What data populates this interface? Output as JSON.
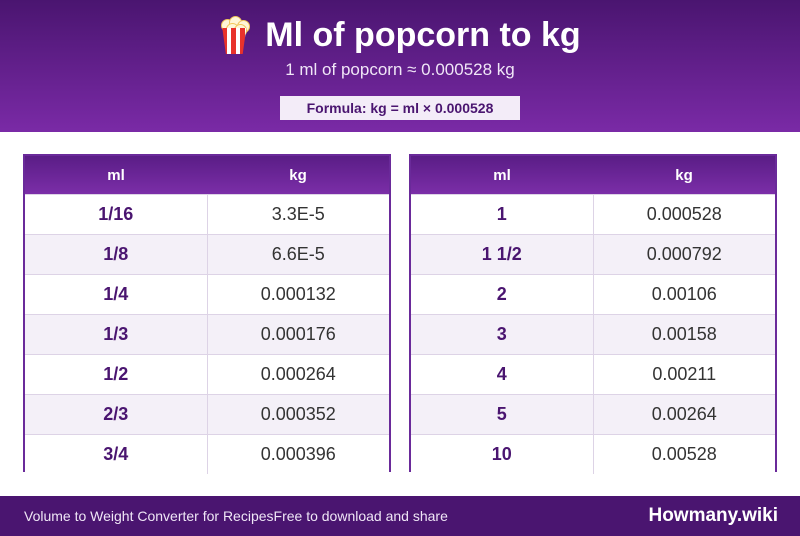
{
  "header": {
    "title": "Ml of popcorn to kg",
    "icon": "popcorn-icon",
    "subtitle": "1 ml of popcorn ≈ 0.000528 kg",
    "formula": "Formula: kg = ml × 0.000528"
  },
  "tables": [
    {
      "col_ml": "ml",
      "col_kg": "kg",
      "rows": [
        {
          "ml": "1/16",
          "kg": "3.3E-5"
        },
        {
          "ml": "1/8",
          "kg": "6.6E-5"
        },
        {
          "ml": "1/4",
          "kg": "0.000132"
        },
        {
          "ml": "1/3",
          "kg": "0.000176"
        },
        {
          "ml": "1/2",
          "kg": "0.000264"
        },
        {
          "ml": "2/3",
          "kg": "0.000352"
        },
        {
          "ml": "3/4",
          "kg": "0.000396"
        }
      ]
    },
    {
      "col_ml": "ml",
      "col_kg": "kg",
      "rows": [
        {
          "ml": "1",
          "kg": "0.000528"
        },
        {
          "ml": "1 1/2",
          "kg": "0.000792"
        },
        {
          "ml": "2",
          "kg": "0.00106"
        },
        {
          "ml": "3",
          "kg": "0.00158"
        },
        {
          "ml": "4",
          "kg": "0.00211"
        },
        {
          "ml": "5",
          "kg": "0.00264"
        },
        {
          "ml": "10",
          "kg": "0.00528"
        }
      ]
    }
  ],
  "footer": {
    "description": "Volume to Weight Converter for RecipesFree to download and share",
    "brand": "Howmany.wiki"
  },
  "colors": {
    "primary": "#4a1570",
    "accent": "#7a2aa6",
    "row_alt": "#f4f0f8"
  }
}
